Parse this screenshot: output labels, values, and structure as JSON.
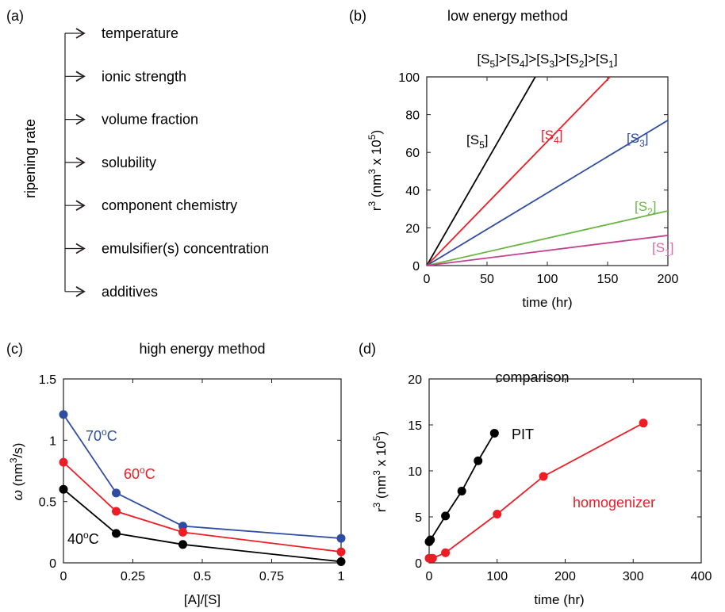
{
  "panel_a": {
    "label": "(a)",
    "ylabel": "ripening rate",
    "factors": [
      "temperature",
      "ionic strength",
      "volume fraction",
      "solubility",
      "component chemistry",
      "emulsifier(s) concentration",
      "additives"
    ]
  },
  "colors": {
    "black": "#000000",
    "red": "#ee1c25",
    "blue": "#2e4da0",
    "green": "#6ab545",
    "magenta": "#c4408f",
    "pink": "#d46ca8",
    "axis": "#231f20"
  },
  "chart_data": [
    {
      "panel": "(b)",
      "type": "line",
      "title": "low energy method",
      "subtitle": "[S5]>[S4]>[S3]>[S2]>[S1]",
      "xlabel": "time (hr)",
      "ylabel": "r3 (nm3 x 105)",
      "xlim": [
        0,
        200
      ],
      "ylim": [
        0,
        100
      ],
      "xticks": [
        0,
        50,
        100,
        150,
        200
      ],
      "yticks": [
        0,
        20,
        40,
        60,
        80,
        100
      ],
      "grid": false,
      "series": [
        {
          "name": "[S5]",
          "color": "black",
          "x": [
            0,
            90
          ],
          "y": [
            0,
            100
          ]
        },
        {
          "name": "[S4]",
          "color": "red",
          "x": [
            0,
            152
          ],
          "y": [
            0,
            100
          ]
        },
        {
          "name": "[S3]",
          "color": "blue",
          "x": [
            0,
            200
          ],
          "y": [
            0,
            77
          ]
        },
        {
          "name": "[S2]",
          "color": "green",
          "x": [
            0,
            200
          ],
          "y": [
            0,
            29
          ]
        },
        {
          "name": "[S1]",
          "color": "magenta",
          "x": [
            0,
            200
          ],
          "y": [
            0,
            16
          ]
        }
      ]
    },
    {
      "panel": "(c)",
      "type": "line",
      "title": "high energy method",
      "xlabel": "[A]/[S]",
      "ylabel": "ω (nm3/s)",
      "xlim": [
        0,
        1
      ],
      "ylim": [
        0,
        1.5
      ],
      "xticks": [
        "0",
        "0.25",
        "0.5",
        "0.75",
        "1"
      ],
      "yticks": [
        "0",
        "0.5",
        "1",
        "1.5"
      ],
      "grid": false,
      "series": [
        {
          "name": "70oC",
          "color": "blue",
          "x": [
            0,
            0.19,
            0.43,
            1
          ],
          "y": [
            1.21,
            0.57,
            0.3,
            0.2
          ]
        },
        {
          "name": "60oC",
          "color": "red",
          "x": [
            0,
            0.19,
            0.43,
            1
          ],
          "y": [
            0.82,
            0.42,
            0.25,
            0.09
          ]
        },
        {
          "name": "40oC",
          "color": "black",
          "x": [
            0,
            0.19,
            0.43,
            1
          ],
          "y": [
            0.6,
            0.24,
            0.15,
            0.01
          ]
        }
      ]
    },
    {
      "panel": "(d)",
      "type": "line",
      "title": "comparison",
      "xlabel": "time (hr)",
      "ylabel": "r3 (nm3 x 105)",
      "xlim": [
        0,
        400
      ],
      "ylim": [
        0,
        20
      ],
      "xticks": [
        0,
        100,
        200,
        300,
        400
      ],
      "yticks": [
        0,
        5,
        10,
        15,
        20
      ],
      "grid": false,
      "series": [
        {
          "name": "PIT",
          "color": "black",
          "x": [
            0,
            2,
            24,
            48,
            72,
            96
          ],
          "y": [
            2.3,
            2.5,
            5.1,
            7.8,
            11.1,
            14.1
          ]
        },
        {
          "name": "homogenizer",
          "color": "red",
          "x": [
            0,
            5,
            24,
            100,
            168,
            315
          ],
          "y": [
            0.5,
            0.5,
            1.1,
            5.3,
            9.4,
            15.2
          ]
        }
      ]
    }
  ]
}
